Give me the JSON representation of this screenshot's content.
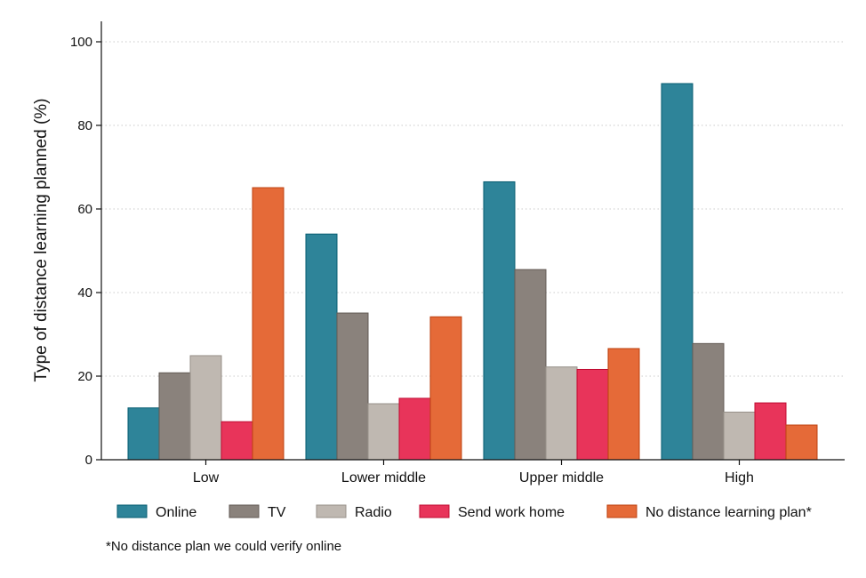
{
  "chart_data": {
    "type": "bar",
    "title": "",
    "xlabel": "",
    "ylabel": "Type of distance learning planned (%)",
    "ylim": [
      0,
      100
    ],
    "yticks": [
      0,
      20,
      40,
      60,
      80,
      100
    ],
    "grid": true,
    "categories": [
      "Low",
      "Lower middle",
      "Upper middle",
      "High"
    ],
    "series": [
      {
        "name": "Online",
        "color": "#2e8499",
        "values": [
          12.4,
          54.0,
          66.5,
          90.0
        ]
      },
      {
        "name": "TV",
        "color": "#8a827c",
        "values": [
          20.8,
          35.1,
          45.5,
          27.8
        ]
      },
      {
        "name": "Radio",
        "color": "#bfb8b1",
        "values": [
          24.9,
          13.4,
          22.2,
          11.4
        ]
      },
      {
        "name": "Send work home",
        "color": "#e8345a",
        "values": [
          9.1,
          14.7,
          21.6,
          13.6
        ]
      },
      {
        "name": "No distance learning plan*",
        "color": "#e56a38",
        "values": [
          65.1,
          34.2,
          26.6,
          8.3
        ]
      }
    ],
    "legend_position": "bottom",
    "footnote": "*No distance plan we could verify online"
  }
}
